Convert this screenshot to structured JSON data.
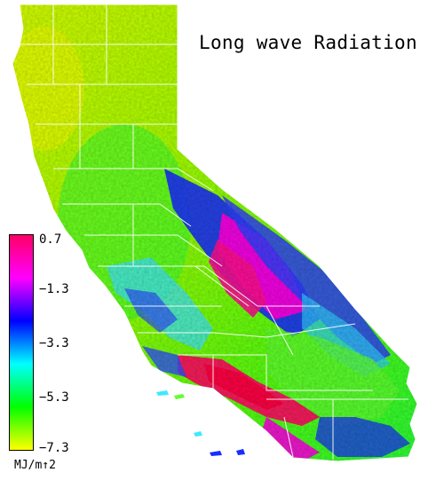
{
  "title": "Long wave Radiation",
  "legend": {
    "units": "MJ/m↑2",
    "ticks": [
      "0.7",
      "−1.3",
      "−3.3",
      "−5.3",
      "−7.3"
    ],
    "min": -7.3,
    "max": 0.7,
    "colors": [
      "#ff0066",
      "#ff00ff",
      "#0000ff",
      "#00ffff",
      "#00ff00",
      "#ffff00"
    ]
  }
}
